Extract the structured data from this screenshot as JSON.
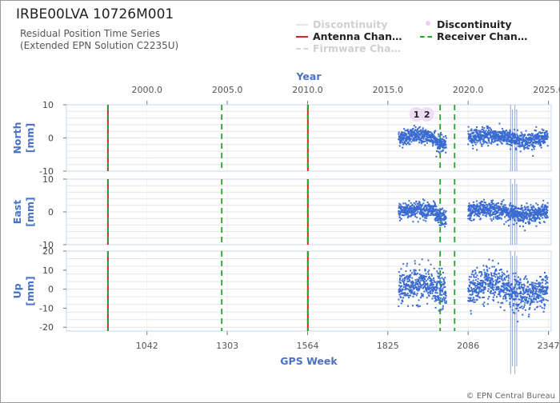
{
  "header": {
    "title": "IRBE00LVA 10726M001",
    "subtitle_line1": "Residual Position Time Series",
    "subtitle_line2": "(Extended EPN Solution C2235U)"
  },
  "legend": {
    "items": [
      {
        "label": "Discontinuity",
        "style": "line",
        "color": "#e6e6e6"
      },
      {
        "label": "Discontinuity",
        "style": "dot",
        "color": "#e7d0f0"
      },
      {
        "label": "Antenna Chan…",
        "style": "line",
        "color": "#d62728"
      },
      {
        "label": "Receiver Chan…",
        "style": "dashed",
        "color": "#2ca02c"
      },
      {
        "label": "Firmware Cha…",
        "style": "dashed",
        "color": "#d6d6d6"
      }
    ]
  },
  "footer": {
    "copyright": "© EPN Central Bureau"
  },
  "chart_data": {
    "type": "scatter",
    "top_axis": {
      "label": "Year",
      "ticks": [
        "2000.0",
        "2005.0",
        "2010.0",
        "2015.0",
        "2020.0",
        "2025.0"
      ],
      "tick_values": [
        2000.0,
        2005.0,
        2010.0,
        2015.0,
        2020.0,
        2025.0
      ]
    },
    "bottom_axis": {
      "label": "GPS Week",
      "ticks": [
        "1042",
        "1303",
        "1564",
        "1825",
        "2086",
        "2347"
      ],
      "tick_values": [
        1042,
        1303,
        1564,
        1825,
        2086,
        2347
      ]
    },
    "x_range": [
      780,
      2356
    ],
    "panels": [
      {
        "name": "North",
        "ylabel_line1": "North",
        "ylabel_line2": "[mm]",
        "ylim": [
          -10,
          10
        ],
        "yticks": [
          10,
          0,
          -10
        ],
        "ytick_labels": [
          "10",
          "0",
          "-10"
        ],
        "noise": 1.2
      },
      {
        "name": "East",
        "ylabel_line1": "East",
        "ylabel_line2": "[mm]",
        "ylim": [
          -10,
          10
        ],
        "yticks": [
          10,
          0,
          -10
        ],
        "ytick_labels": [
          "10",
          "0",
          "-10"
        ],
        "noise": 1.3
      },
      {
        "name": "Up",
        "ylabel_line1": "Up",
        "ylabel_line2": "[mm]",
        "ylim": [
          -22,
          20
        ],
        "yticks": [
          20,
          10,
          0,
          -10,
          -20
        ],
        "ytick_labels": [
          "20",
          "10",
          "0",
          "-10",
          "-20"
        ],
        "noise": 4.5
      }
    ],
    "data_segments": [
      {
        "start_week": 1860,
        "end_week": 2015
      },
      {
        "start_week": 2086,
        "end_week": 2345
      }
    ],
    "event_lines": [
      {
        "type": "antenna_receiver",
        "gps_week": 915
      },
      {
        "type": "receiver",
        "gps_week": 1285
      },
      {
        "type": "antenna_receiver",
        "gps_week": 1565
      },
      {
        "type": "receiver",
        "gps_week": 1995
      },
      {
        "type": "receiver",
        "gps_week": 2042
      }
    ],
    "discontinuity_markers": [
      {
        "label": "1",
        "gps_week": 1918
      },
      {
        "label": "2",
        "gps_week": 1952
      }
    ],
    "outlier_spikes_weeks": [
      2224,
      2230,
      2238,
      2244
    ],
    "colors": {
      "points": "#3a6bd1",
      "antenna": "#d62728",
      "receiver": "#2ca02c",
      "axis_label": "#4a72c4",
      "grid": "#e6e6e6"
    }
  }
}
